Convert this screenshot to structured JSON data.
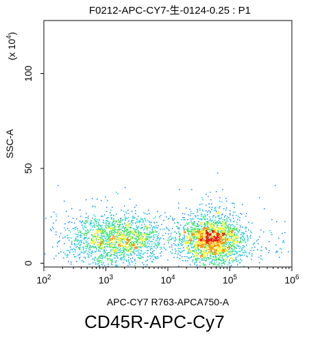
{
  "chart_data": {
    "type": "scatter",
    "subtype": "flow-cytometry density dot plot",
    "title": "F0212-APC-CY7-生-0124-0.25 : P1",
    "xlabel": "APC-CY7 R763-APCA750-A",
    "ylabel": "SSC-A",
    "y_multiplier_label": "(x 10",
    "y_multiplier_exponent": "4",
    "y_multiplier_close": ")",
    "x_scale": "log",
    "x_range": [
      100,
      1000000
    ],
    "x_ticks": [
      {
        "value": 100,
        "base": "10",
        "exp": "2"
      },
      {
        "value": 1000,
        "base": "10",
        "exp": "3"
      },
      {
        "value": 10000,
        "base": "10",
        "exp": "4"
      },
      {
        "value": 100000,
        "base": "10",
        "exp": "5"
      },
      {
        "value": 1000000,
        "base": "10",
        "exp": "6"
      }
    ],
    "y_scale": "linear",
    "y_range": [
      -2,
      128
    ],
    "y_ticks": [
      {
        "value": 0,
        "label": "0"
      },
      {
        "value": 50,
        "label": "50"
      },
      {
        "value": 100,
        "label": "100"
      }
    ],
    "grid": false,
    "legend": "none",
    "populations": [
      {
        "x_log10_center": 3.15,
        "x_log10_spread": 0.38,
        "y_center": 12,
        "y_spread": 5.5,
        "events": 1500
      },
      {
        "x_log10_center": 4.7,
        "x_log10_spread": 0.26,
        "y_center": 12,
        "y_spread": 5.5,
        "events": 1900
      }
    ],
    "density_colors": [
      "#1c1cf5",
      "#1e90ff",
      "#19d3d8",
      "#2ee84a",
      "#f2f21c",
      "#ff8c00",
      "#e8170f"
    ]
  },
  "caption": "CD45R-APC-Cy7"
}
